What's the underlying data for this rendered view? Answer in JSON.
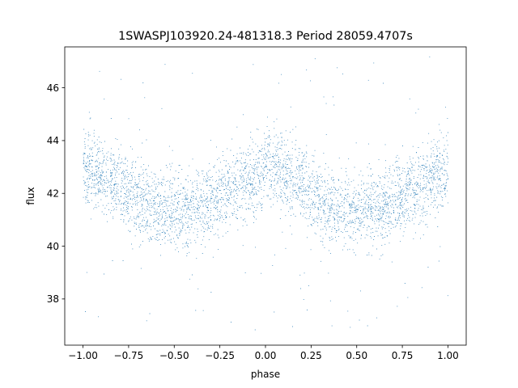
{
  "chart_data": {
    "type": "scatter",
    "title": "1SWASPJ103920.24-481318.3 Period 28059.4707s",
    "xlabel": "phase",
    "ylabel": "flux",
    "xlim": [
      -1.1,
      1.1
    ],
    "ylim": [
      36.25,
      47.55
    ],
    "x_ticks": [
      -1.0,
      -0.75,
      -0.5,
      -0.25,
      0.0,
      0.25,
      0.5,
      0.75,
      1.0
    ],
    "x_tick_labels": [
      "−1.00",
      "−0.75",
      "−0.50",
      "−0.25",
      "0.00",
      "0.25",
      "0.50",
      "0.75",
      "1.00"
    ],
    "y_ticks": [
      38,
      40,
      42,
      44,
      46
    ],
    "y_tick_labels": [
      "38",
      "40",
      "42",
      "44",
      "46"
    ],
    "grid": false,
    "legend": "none",
    "point_color": "#1f77b4",
    "series": [
      {
        "x_range": [
          -1.0,
          1.0
        ],
        "period_in_phase": 1.0,
        "curve_phase": [
          -1.0,
          -0.9,
          -0.8,
          -0.7,
          -0.6,
          -0.5,
          -0.4,
          -0.3,
          -0.2,
          -0.1,
          0.0,
          0.1,
          0.2,
          0.3,
          0.4,
          0.5,
          0.6,
          0.7,
          0.8,
          0.9,
          1.0
        ],
        "curve_flux": [
          42.9,
          42.7,
          42.3,
          41.8,
          41.4,
          41.3,
          41.4,
          41.7,
          42.1,
          42.5,
          42.9,
          42.7,
          42.3,
          41.8,
          41.4,
          41.3,
          41.4,
          41.7,
          42.1,
          42.5,
          42.9
        ],
        "scatter_std": 0.7,
        "approx_points": 14000,
        "outlier_range": [
          36.8,
          47.2
        ]
      }
    ]
  }
}
